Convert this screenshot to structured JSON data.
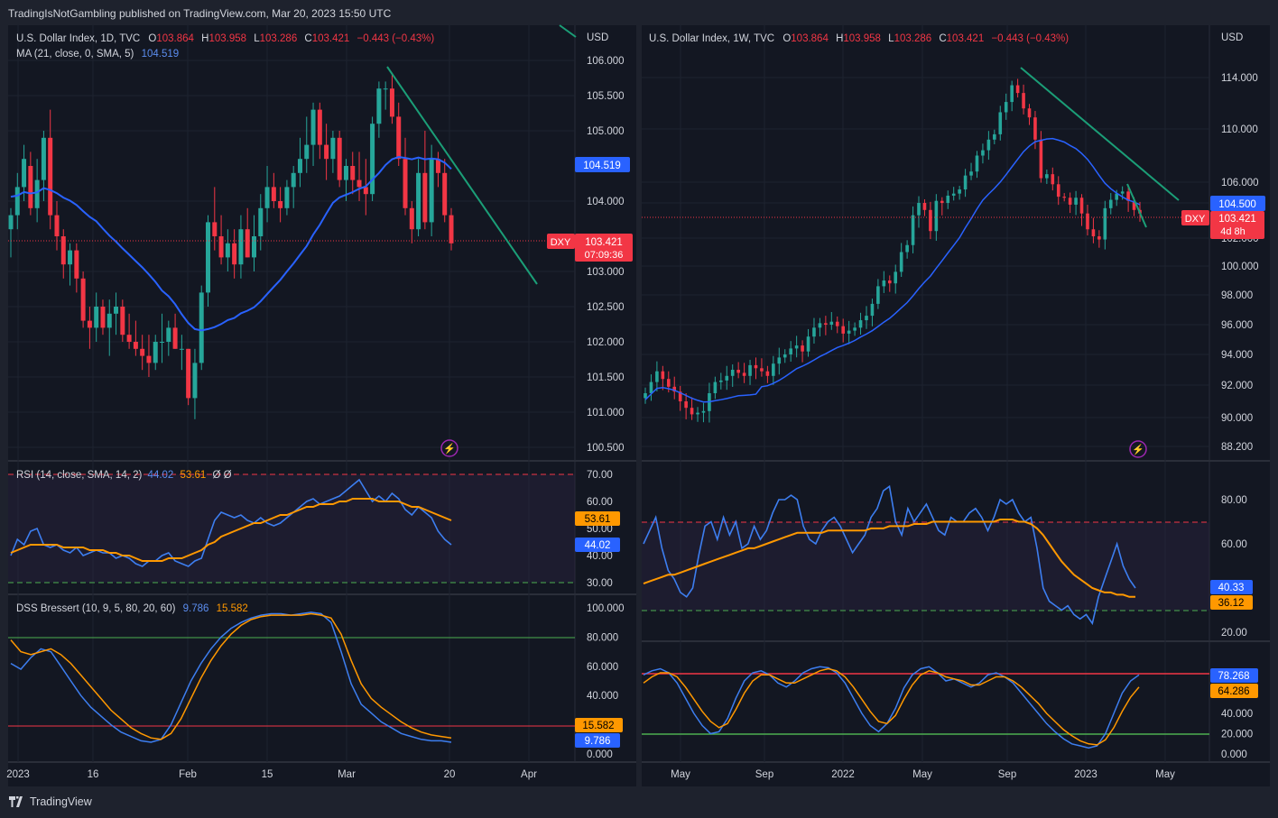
{
  "header": {
    "published": "TradingIsNotGambling published on TradingView.com, Mar 20, 2023 15:50 UTC"
  },
  "footer": {
    "brand": "TradingView"
  },
  "colors": {
    "background": "#131722",
    "frame": "#1e222d",
    "up": "#26a69a",
    "down": "#f23645",
    "ma": "#2962ff",
    "rsi": "#3d7ef0",
    "rsi_ma": "#ff9800",
    "trendline": "#1b9e77"
  },
  "panels": [
    {
      "name": "daily",
      "title": {
        "symbol": "U.S. Dollar Index, 1D, TVC",
        "o_label": "O",
        "o": "103.864",
        "h_label": "H",
        "h": "103.958",
        "l_label": "L",
        "l": "103.286",
        "c_label": "C",
        "c": "103.421",
        "chg": "−0.443 (−0.43%)"
      },
      "ma_title": {
        "label": "MA (21, close, 0, SMA, 5)",
        "value": "104.519"
      },
      "currency": "USD",
      "price_ticks": [
        "106.000",
        "105.500",
        "105.000",
        "104.000",
        "103.000",
        "102.500",
        "102.000",
        "101.500",
        "101.000",
        "100.500"
      ],
      "badges": {
        "ma": "104.519",
        "symbol": "DXY",
        "price": "103.421",
        "timer": "07:09:36"
      },
      "rsi": {
        "title": "RSI (14, close, SMA, 14, 2)",
        "v1": "44.02",
        "v2": "53.61",
        "extra": "Ø  Ø",
        "ticks": [
          "70.00",
          "60.00",
          "50.00",
          "40.00",
          "30.00"
        ],
        "badge1": "53.61",
        "badge2": "44.02"
      },
      "dss": {
        "title": "DSS Bressert (10, 9, 5, 80, 20, 60)",
        "v1": "9.786",
        "v2": "15.582",
        "ticks": [
          "100.000",
          "80.000",
          "60.000",
          "40.000",
          "20.000",
          "0.000"
        ],
        "badge1": "15.582",
        "badge2": "9.786"
      },
      "time_ticks": [
        "2023",
        "16",
        "Feb",
        "15",
        "Mar",
        "20",
        "Apr"
      ]
    },
    {
      "name": "weekly",
      "title": {
        "symbol": "U.S. Dollar Index, 1W, TVC",
        "o_label": "O",
        "o": "103.864",
        "h_label": "H",
        "h": "103.958",
        "l_label": "L",
        "l": "103.286",
        "c_label": "C",
        "c": "103.421",
        "chg": "−0.443 (−0.43%)"
      },
      "currency": "USD",
      "price_ticks": [
        "114.000",
        "110.000",
        "106.000",
        "104.000",
        "102.000",
        "100.000",
        "98.000",
        "96.000",
        "94.000",
        "92.000",
        "90.000",
        "88.200"
      ],
      "badges": {
        "ma": "104.500",
        "symbol": "DXY",
        "price": "103.421",
        "timer": "4d 8h"
      },
      "rsi": {
        "ticks": [
          "80.00",
          "60.00",
          "40.00",
          "20.00"
        ],
        "badge1": "40.33",
        "badge2": "36.12"
      },
      "dss": {
        "ticks": [
          "60.000",
          "40.000",
          "20.000",
          "0.000"
        ],
        "badge1": "78.268",
        "badge2": "64.286"
      },
      "time_ticks": [
        "May",
        "Sep",
        "2022",
        "May",
        "Sep",
        "2023",
        "May"
      ]
    }
  ],
  "chart_data": [
    {
      "type": "candlestick",
      "title": "U.S. Dollar Index, 1D, TVC",
      "ylim": [
        100.3,
        106.4
      ],
      "ohlc": [
        [
          103.6,
          103.9,
          103.2,
          103.8
        ],
        [
          103.8,
          104.4,
          103.6,
          104.2
        ],
        [
          104.2,
          104.8,
          104.0,
          104.6
        ],
        [
          104.5,
          104.7,
          103.8,
          103.9
        ],
        [
          103.9,
          104.6,
          103.7,
          104.3
        ],
        [
          104.3,
          105.0,
          104.0,
          104.9
        ],
        [
          104.9,
          105.3,
          103.6,
          103.8
        ],
        [
          103.8,
          104.0,
          103.3,
          103.5
        ],
        [
          103.5,
          103.6,
          102.9,
          103.1
        ],
        [
          103.1,
          103.4,
          102.8,
          103.3
        ],
        [
          103.3,
          103.4,
          102.7,
          102.9
        ],
        [
          102.9,
          103.0,
          102.2,
          102.3
        ],
        [
          102.3,
          102.5,
          101.9,
          102.2
        ],
        [
          102.2,
          102.7,
          102.0,
          102.5
        ],
        [
          102.5,
          102.6,
          102.1,
          102.2
        ],
        [
          102.2,
          102.6,
          101.8,
          102.4
        ],
        [
          102.4,
          102.7,
          102.1,
          102.5
        ],
        [
          102.5,
          102.6,
          102.0,
          102.1
        ],
        [
          102.1,
          102.4,
          101.9,
          102.0
        ],
        [
          102.0,
          102.3,
          101.8,
          101.9
        ],
        [
          101.9,
          102.1,
          101.6,
          101.8
        ],
        [
          101.8,
          102.1,
          101.5,
          101.7
        ],
        [
          101.7,
          102.1,
          101.6,
          102.0
        ],
        [
          102.0,
          102.4,
          101.7,
          102.0
        ],
        [
          102.0,
          102.3,
          101.8,
          102.2
        ],
        [
          102.2,
          102.4,
          101.9,
          101.9
        ],
        [
          101.9,
          102.1,
          101.6,
          101.9
        ],
        [
          101.9,
          101.9,
          101.1,
          101.2
        ],
        [
          101.2,
          101.9,
          100.9,
          101.7
        ],
        [
          101.7,
          102.8,
          101.6,
          102.7
        ],
        [
          102.7,
          103.8,
          102.5,
          103.7
        ],
        [
          103.7,
          104.2,
          103.3,
          103.5
        ],
        [
          103.5,
          103.8,
          103.1,
          103.2
        ],
        [
          103.2,
          103.6,
          103.0,
          103.4
        ],
        [
          103.4,
          103.6,
          102.9,
          103.1
        ],
        [
          103.1,
          103.8,
          102.9,
          103.6
        ],
        [
          103.6,
          103.9,
          103.2,
          103.2
        ],
        [
          103.2,
          103.8,
          103.0,
          103.5
        ],
        [
          103.5,
          104.1,
          103.3,
          103.9
        ],
        [
          103.9,
          104.5,
          103.7,
          104.2
        ],
        [
          104.2,
          104.4,
          103.9,
          104.0
        ],
        [
          104.0,
          104.2,
          103.7,
          103.9
        ],
        [
          103.9,
          104.3,
          103.8,
          104.2
        ],
        [
          104.2,
          104.5,
          103.9,
          104.4
        ],
        [
          104.4,
          104.9,
          104.2,
          104.6
        ],
        [
          104.6,
          105.2,
          104.4,
          104.8
        ],
        [
          104.8,
          105.4,
          104.5,
          105.3
        ],
        [
          105.3,
          105.4,
          104.6,
          104.8
        ],
        [
          104.8,
          105.1,
          104.3,
          104.6
        ],
        [
          104.6,
          105.0,
          104.4,
          104.9
        ],
        [
          104.9,
          105.0,
          104.2,
          104.3
        ],
        [
          104.3,
          104.6,
          104.0,
          104.5
        ],
        [
          104.5,
          104.7,
          104.1,
          104.3
        ],
        [
          104.3,
          104.7,
          104.0,
          104.2
        ],
        [
          104.2,
          104.6,
          103.8,
          104.1
        ],
        [
          104.1,
          105.2,
          104.0,
          105.1
        ],
        [
          105.1,
          105.7,
          104.9,
          105.6
        ],
        [
          105.6,
          105.7,
          105.3,
          105.6
        ],
        [
          105.6,
          105.8,
          105.1,
          105.2
        ],
        [
          105.2,
          105.4,
          104.5,
          104.6
        ],
        [
          104.6,
          104.9,
          103.8,
          103.9
        ],
        [
          103.9,
          104.0,
          103.4,
          103.6
        ],
        [
          103.6,
          104.6,
          103.5,
          104.4
        ],
        [
          104.4,
          105.0,
          103.6,
          103.7
        ],
        [
          103.7,
          104.8,
          103.5,
          104.6
        ],
        [
          104.6,
          104.7,
          104.2,
          104.4
        ],
        [
          104.4,
          104.6,
          103.7,
          103.8
        ],
        [
          103.8,
          103.9,
          103.3,
          103.4
        ]
      ]
    },
    {
      "type": "candlestick",
      "title": "U.S. Dollar Index, 1W, TVC",
      "ylim": [
        87.5,
        115.5
      ],
      "close": [
        91.5,
        92.2,
        92.9,
        92.4,
        91.9,
        91.6,
        91.0,
        90.6,
        90.2,
        90.3,
        90.4,
        91.5,
        92.2,
        92.3,
        92.6,
        93.0,
        92.8,
        92.6,
        93.3,
        93.1,
        92.9,
        92.6,
        93.4,
        93.8,
        94.0,
        94.4,
        94.6,
        94.2,
        95.2,
        95.8,
        96.1,
        96.0,
        96.2,
        95.9,
        95.4,
        95.6,
        95.8,
        96.3,
        96.6,
        97.4,
        98.6,
        99.0,
        98.8,
        99.6,
        101.0,
        101.5,
        103.3,
        104.0,
        103.6,
        102.4,
        104.2,
        104.0,
        104.7,
        104.9,
        105.3,
        106.5,
        106.8,
        108.0,
        108.4,
        109.2,
        109.6,
        111.3,
        112.1,
        113.4,
        112.8,
        111.6,
        110.9,
        109.2,
        106.3,
        106.6,
        105.8,
        104.6,
        104.5,
        103.9,
        104.5,
        103.4,
        102.5,
        102.1,
        101.9,
        103.7,
        104.3,
        104.9,
        105.1,
        104.2,
        103.6,
        103.4
      ],
      "ma": {
        "name": "MA",
        "values": "SMA of close"
      }
    }
  ]
}
